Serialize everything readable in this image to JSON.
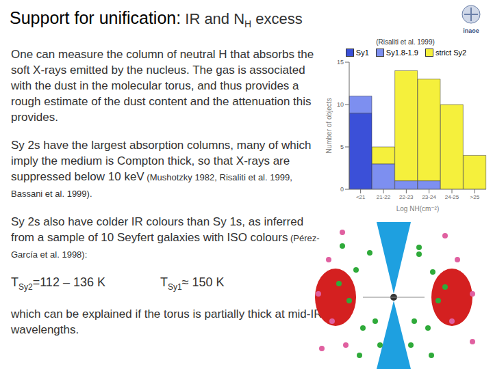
{
  "logo": "inaoe",
  "title": [
    "Support for unification:",
    " IR and N",
    "H",
    " excess"
  ],
  "paragraphs": [
    {
      "text": "One can measure the column of neutral H that absorbs the soft X-rays emitted by the nucleus. The gas is associated with the dust in the molecular torus, and thus provides a rough estimate of the dust content and the attenuation this provides."
    },
    {
      "text": "Sy 2s have the largest absorption columns, many of which imply the medium is Compton thick, so that X-rays are suppressed below 10 keV",
      "ref": "(Mushotzky 1982, Risaliti et al. 1999, Bassani et al. 1999)."
    },
    {
      "text": "Sy 2s also have colder IR colours than Sy 1s, as inferred  from a sample of 10 Seyfert galaxies with ISO colours",
      "ref": "(Pérez-García  et al. 1998):"
    },
    {
      "temps": [
        [
          "T",
          "Sy2",
          "=112 – 136 K"
        ],
        [
          "T",
          "Sy1",
          "≈ 150 K"
        ]
      ]
    },
    {
      "text": "which can be explained if the torus is partially thick at mid-IR wavelengths."
    }
  ],
  "chart_data": {
    "type": "bar",
    "subtitle": "(Risaliti et al. 1999)",
    "stacked": true,
    "x_label": "Log NH(cm⁻²)",
    "y_label": "Number of objects",
    "categories": [
      "<21",
      "21-22",
      "22-23",
      "23-24",
      "24-25",
      ">25"
    ],
    "series": [
      {
        "name": "Sy1",
        "color": "#3b50d8",
        "values": [
          9,
          0,
          0,
          0,
          0,
          0
        ]
      },
      {
        "name": "Sy1.8-1.9",
        "color": "#7d8ff0",
        "values": [
          2,
          3,
          1,
          1,
          0,
          0
        ]
      },
      {
        "name": "strict Sy2",
        "color": "#f5f03c",
        "values": [
          0,
          2,
          13,
          12,
          10,
          4
        ]
      }
    ],
    "ylim": [
      0,
      15
    ],
    "yticks": [
      0,
      5,
      10,
      15
    ],
    "legend": "top"
  }
}
